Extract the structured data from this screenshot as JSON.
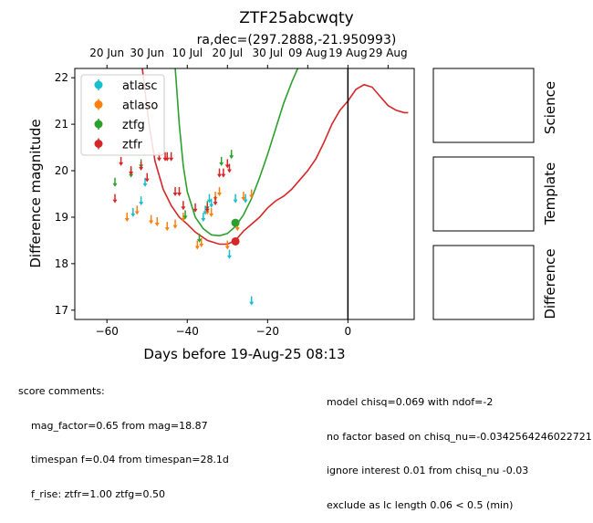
{
  "chart_data": {
    "type": "scatter",
    "title": "ZTF25abcwqty",
    "subtitle": "ra,dec=(297.2888,-21.950993)",
    "xlabel": "Days before 19-Aug-25 08:13",
    "ylabel": "Difference magnitude",
    "xlim": [
      -68,
      16.5
    ],
    "ylim": [
      22.2,
      16.8
    ],
    "y_inverted": true,
    "xticks": [
      -60,
      -40,
      -20,
      0
    ],
    "yticks": [
      17,
      18,
      19,
      20,
      21,
      22
    ],
    "top_axis_ticks": [
      {
        "label": "20 Jun",
        "x": -60
      },
      {
        "label": "30 Jun",
        "x": -50
      },
      {
        "label": "10 Jul",
        "x": -40
      },
      {
        "label": "20 Jul",
        "x": -30
      },
      {
        "label": "30 Jul",
        "x": -20
      },
      {
        "label": "09 Aug",
        "x": -10
      },
      {
        "label": "19 Aug",
        "x": 0
      },
      {
        "label": "29 Aug",
        "x": 10
      }
    ],
    "vline_x": 0,
    "legend_position": "upper-left",
    "colors": {
      "atlasc": "#17becf",
      "atlaso": "#ff7f0e",
      "ztfg": "#2ca02c",
      "ztfr": "#d62728"
    },
    "series": [
      {
        "name": "atlasc",
        "color": "#17becf",
        "limits": [
          [
            -53.5,
            19.1
          ],
          [
            -51.5,
            19.35
          ],
          [
            -50.5,
            19.75
          ],
          [
            -36,
            19.0
          ],
          [
            -35.5,
            19.15
          ],
          [
            -34.5,
            19.4
          ],
          [
            -34,
            19.3
          ],
          [
            -29.5,
            18.2
          ],
          [
            -28,
            19.4
          ],
          [
            -25.5,
            19.4
          ],
          [
            -24,
            17.2
          ]
        ],
        "detections": []
      },
      {
        "name": "atlaso",
        "color": "#ff7f0e",
        "limits": [
          [
            -55,
            19.0
          ],
          [
            -52.5,
            19.15
          ],
          [
            -49,
            18.95
          ],
          [
            -47.5,
            18.9
          ],
          [
            -45,
            18.8
          ],
          [
            -43,
            18.85
          ],
          [
            -41,
            19.0
          ],
          [
            -37.5,
            18.4
          ],
          [
            -36.5,
            18.45
          ],
          [
            -35,
            19.15
          ],
          [
            -34,
            19.1
          ],
          [
            -33,
            19.45
          ],
          [
            -32,
            19.55
          ],
          [
            -30,
            18.4
          ],
          [
            -27.5,
            18.8
          ],
          [
            -26,
            19.45
          ],
          [
            -24,
            19.5
          ]
        ],
        "detections": []
      },
      {
        "name": "ztfg",
        "color": "#2ca02c",
        "limits": [
          [
            -58,
            19.75
          ],
          [
            -54,
            19.95
          ],
          [
            -51.5,
            20.15
          ],
          [
            -40.5,
            19.05
          ],
          [
            -37,
            18.55
          ],
          [
            -35,
            19.25
          ],
          [
            -31.5,
            20.2
          ],
          [
            -29,
            20.35
          ]
        ],
        "detections": [
          [
            -28,
            18.88
          ]
        ]
      },
      {
        "name": "ztfr",
        "color": "#d62728",
        "limits": [
          [
            -58,
            19.4
          ],
          [
            -56.5,
            20.2
          ],
          [
            -54,
            20.0
          ],
          [
            -51.5,
            20.1
          ],
          [
            -50,
            19.85
          ],
          [
            -47,
            20.3
          ],
          [
            -45.5,
            20.3
          ],
          [
            -45,
            20.3
          ],
          [
            -44,
            20.3
          ],
          [
            -43,
            19.55
          ],
          [
            -42,
            19.55
          ],
          [
            -41,
            19.25
          ],
          [
            -38,
            19.2
          ],
          [
            -35,
            19.2
          ],
          [
            -33,
            19.35
          ],
          [
            -32,
            19.95
          ],
          [
            -31,
            19.95
          ],
          [
            -30,
            20.15
          ],
          [
            -29.5,
            20.05
          ]
        ],
        "detections": [
          [
            -28,
            18.48
          ]
        ]
      }
    ],
    "model_curves": [
      {
        "color": "#d62728",
        "points": [
          [
            -51.2,
            22.2
          ],
          [
            -49.5,
            21.0
          ],
          [
            -48,
            20.2
          ],
          [
            -46,
            19.6
          ],
          [
            -44,
            19.25
          ],
          [
            -42,
            19.0
          ],
          [
            -40,
            18.85
          ],
          [
            -38,
            18.68
          ],
          [
            -35,
            18.5
          ],
          [
            -32,
            18.42
          ],
          [
            -30,
            18.42
          ],
          [
            -28,
            18.5
          ],
          [
            -26,
            18.7
          ],
          [
            -24,
            18.85
          ],
          [
            -22,
            19.0
          ],
          [
            -20,
            19.2
          ],
          [
            -18,
            19.35
          ],
          [
            -16,
            19.45
          ],
          [
            -14,
            19.6
          ],
          [
            -12,
            19.8
          ],
          [
            -10,
            20.0
          ],
          [
            -8,
            20.25
          ],
          [
            -6,
            20.6
          ],
          [
            -4,
            21.0
          ],
          [
            -2,
            21.3
          ],
          [
            0,
            21.5
          ],
          [
            2,
            21.75
          ],
          [
            4,
            21.85
          ],
          [
            6,
            21.8
          ],
          [
            8,
            21.6
          ],
          [
            10,
            21.4
          ],
          [
            12,
            21.3
          ],
          [
            14,
            21.25
          ],
          [
            15,
            21.25
          ]
        ]
      },
      {
        "color": "#2ca02c",
        "points": [
          [
            -43,
            22.2
          ],
          [
            -42,
            21.0
          ],
          [
            -41,
            20.1
          ],
          [
            -40,
            19.55
          ],
          [
            -38,
            19.0
          ],
          [
            -36,
            18.75
          ],
          [
            -34,
            18.62
          ],
          [
            -32,
            18.6
          ],
          [
            -30,
            18.65
          ],
          [
            -28,
            18.8
          ],
          [
            -26,
            19.05
          ],
          [
            -24,
            19.4
          ],
          [
            -22,
            19.85
          ],
          [
            -20,
            20.35
          ],
          [
            -18,
            20.9
          ],
          [
            -16,
            21.45
          ],
          [
            -14,
            21.9
          ],
          [
            -12.5,
            22.2
          ]
        ]
      }
    ]
  },
  "panels": {
    "science_label": "Science",
    "template_label": "Template",
    "difference_label": "Difference"
  },
  "comments": {
    "left_header": "score comments:",
    "left_lines": [
      "mag_factor=0.65 from mag=18.87",
      "timespan f=0.04 from timespan=28.1d",
      "f_rise: ztfr=1.00 ztfg=0.50"
    ],
    "right_lines": [
      "model chisq=0.069 with ndof=-2",
      "no factor based on chisq_nu=-0.0342564246022721",
      "ignore interest 0.01 from chisq_nu -0.03",
      "exclude as lc length 0.06 < 0.5 (min)"
    ]
  }
}
